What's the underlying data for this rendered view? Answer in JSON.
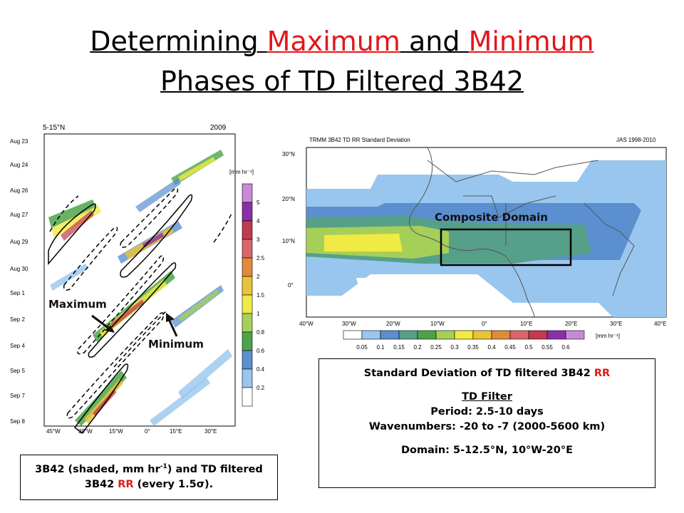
{
  "slide": {
    "title": {
      "part1": "Determining ",
      "highlight1": "Maximum",
      "part2": " and ",
      "highlight2": "Minimum",
      "line2": "Phases of TD Filtered 3B42"
    }
  },
  "left_figure": {
    "header_left": "5-15°N",
    "header_right": "2009",
    "y_labels": [
      "Aug 23",
      "Aug 24",
      "Aug 26",
      "Aug 27",
      "Aug 29",
      "Aug 30",
      "Sep 1",
      "Sep 2",
      "Sep 4",
      "Sep 5",
      "Sep 7",
      "Sep 8"
    ],
    "x_labels": [
      "45°W",
      "30°W",
      "15°W",
      "0°",
      "15°E",
      "30°E"
    ],
    "colorbar_unit": "[mm hr⁻¹]",
    "colorbar_labels": [
      "5",
      "4",
      "3",
      "2.5",
      "2",
      "1.5",
      "1",
      "0.8",
      "0.6",
      "0.4",
      "0.2"
    ],
    "colorbar_colors": [
      "#c88ad8",
      "#8a2fa8",
      "#c23a4e",
      "#d8666a",
      "#e08a3a",
      "#e8c43a",
      "#f0ea44",
      "#a6cf58",
      "#4da34a",
      "#5b8fcf",
      "#99c6ee",
      "#ffffff"
    ],
    "annotations": {
      "maximum": "Maximum",
      "minimum": "Minimum"
    }
  },
  "right_figure": {
    "header_left": "TRMM 3B42 TD RR Standard Deviation",
    "header_right": "JAS 1998-2010",
    "lat_labels": [
      "30°N",
      "20°N",
      "10°N",
      "0°"
    ],
    "lon_labels": [
      "40°W",
      "30°W",
      "20°W",
      "10°W",
      "0°",
      "10°E",
      "20°E",
      "30°E",
      "40°E"
    ],
    "composite_label": "Composite Domain",
    "colorbar_labels": [
      "0.05",
      "0.1",
      "0.15",
      "0.2",
      "0.25",
      "0.3",
      "0.35",
      "0.4",
      "0.45",
      "0.5",
      "0.55",
      "0.6"
    ],
    "colorbar_unit": "[mm hr⁻¹]",
    "colorbar_colors": [
      "#ffffff",
      "#99c6ee",
      "#5b8fcf",
      "#56a08a",
      "#4da34a",
      "#a6cf58",
      "#f0ea44",
      "#e8c43a",
      "#e08a3a",
      "#d8666a",
      "#c23a4e",
      "#8a2fa8",
      "#c88ad8"
    ]
  },
  "caption_left": {
    "line1_a": "3B42 (shaded, mm hr",
    "line1_sup": "-1",
    "line1_b": ") and TD filtered",
    "line2_a": "3B42 ",
    "line2_red": "RR",
    "line2_b": " (every 1.5σ)."
  },
  "caption_right": {
    "line1_a": "Standard Deviation of TD filtered 3B42 ",
    "line1_red": "RR",
    "filter_heading": "TD Filter",
    "period": "Period: 2.5-10 days",
    "wavenumbers": "Wavenumbers: -20 to -7 (2000-5600 km)",
    "domain": "Domain: 5-12.5°N, 10°W-20°E"
  }
}
